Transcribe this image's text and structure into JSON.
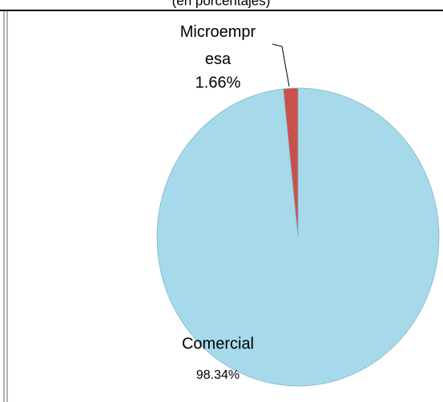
{
  "chart_data": {
    "type": "pie",
    "subtitle": "(en porcentajes)",
    "categories": [
      "Comercial",
      "Microempresa"
    ],
    "values": [
      98.34,
      1.66
    ],
    "value_labels": [
      "98.34%",
      "1.66%"
    ],
    "colors": [
      "#a6d9ea",
      "#c9504b"
    ]
  }
}
